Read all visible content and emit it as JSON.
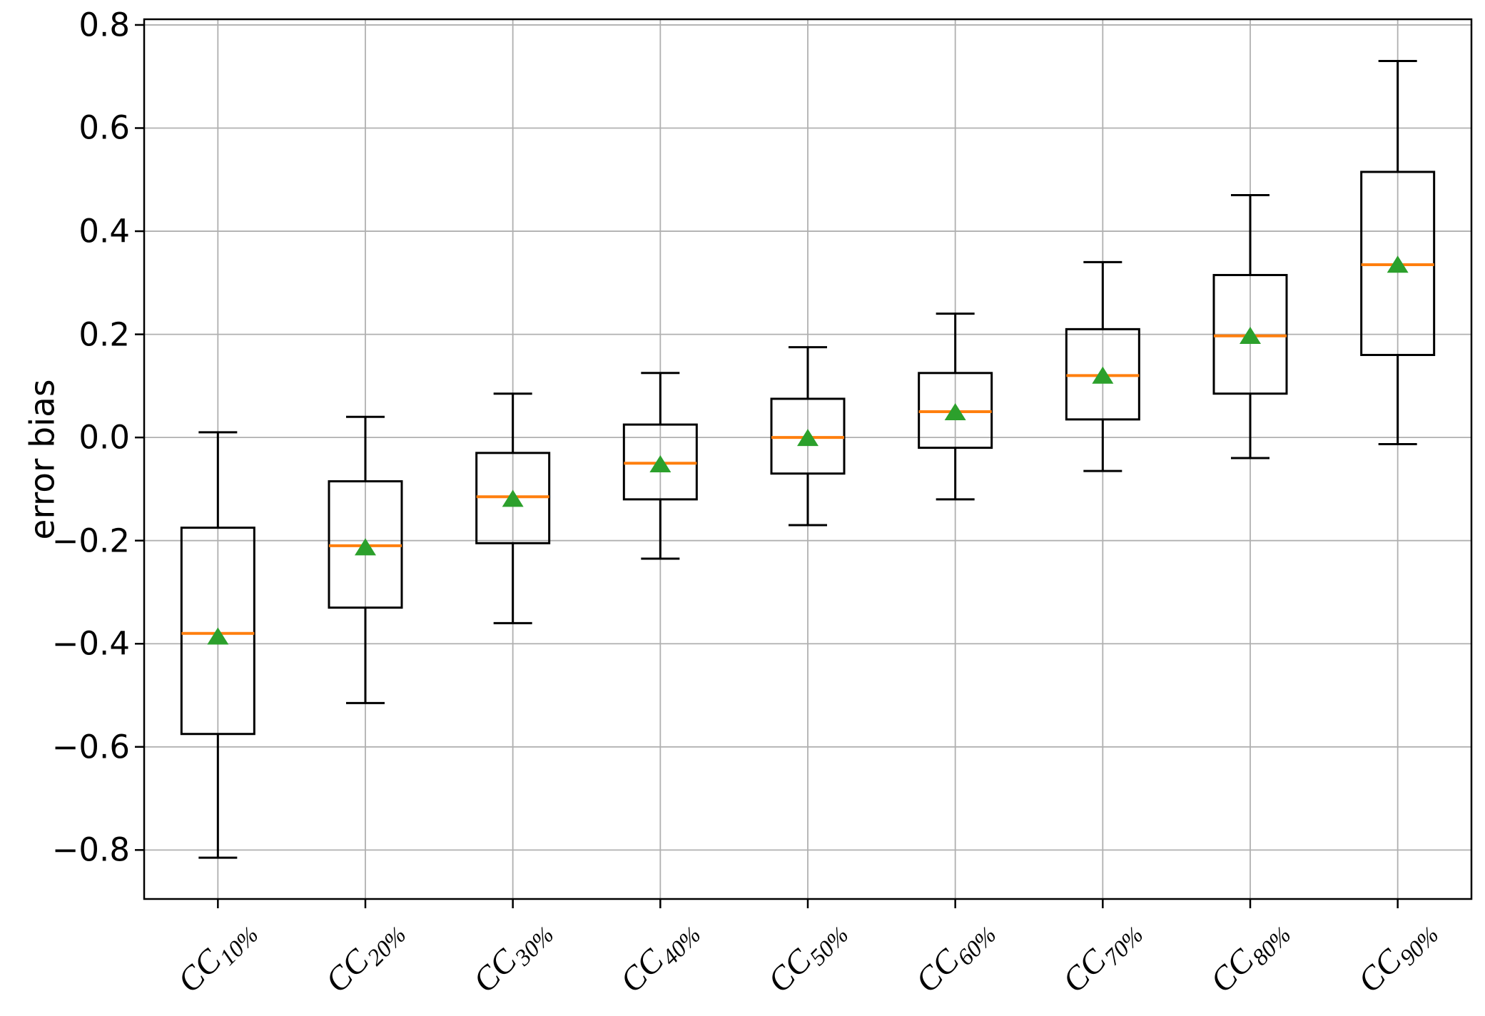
{
  "chart_data": {
    "type": "box",
    "title": "",
    "xlabel": "",
    "ylabel": "error bias",
    "grid": true,
    "legend": "none",
    "ylim": [
      -0.895,
      0.811
    ],
    "yticks": [
      {
        "value": 0.8,
        "label": "0.8"
      },
      {
        "value": 0.6,
        "label": "0.6"
      },
      {
        "value": 0.4,
        "label": "0.4"
      },
      {
        "value": 0.2,
        "label": "0.2"
      },
      {
        "value": 0.0,
        "label": "0.0"
      },
      {
        "value": -0.2,
        "label": "−0.2"
      },
      {
        "value": -0.4,
        "label": "−0.4"
      },
      {
        "value": -0.6,
        "label": "−0.6"
      },
      {
        "value": -0.8,
        "label": "−0.8"
      }
    ],
    "boxes": [
      {
        "label_base": "CC",
        "label_sub": "10%",
        "whislo": -0.815,
        "q1": -0.575,
        "med": -0.38,
        "q3": -0.175,
        "whishi": 0.01,
        "mean": -0.385
      },
      {
        "label_base": "CC",
        "label_sub": "20%",
        "whislo": -0.515,
        "q1": -0.33,
        "med": -0.21,
        "q3": -0.085,
        "whishi": 0.04,
        "mean": -0.212
      },
      {
        "label_base": "CC",
        "label_sub": "30%",
        "whislo": -0.36,
        "q1": -0.205,
        "med": -0.115,
        "q3": -0.03,
        "whishi": 0.085,
        "mean": -0.118
      },
      {
        "label_base": "CC",
        "label_sub": "40%",
        "whislo": -0.235,
        "q1": -0.12,
        "med": -0.05,
        "q3": 0.025,
        "whishi": 0.125,
        "mean": -0.051
      },
      {
        "label_base": "CC",
        "label_sub": "50%",
        "whislo": -0.17,
        "q1": -0.07,
        "med": 0.0,
        "q3": 0.075,
        "whishi": 0.175,
        "mean": 0.0
      },
      {
        "label_base": "CC",
        "label_sub": "60%",
        "whislo": -0.12,
        "q1": -0.02,
        "med": 0.05,
        "q3": 0.125,
        "whishi": 0.24,
        "mean": 0.05
      },
      {
        "label_base": "CC",
        "label_sub": "70%",
        "whislo": -0.065,
        "q1": 0.035,
        "med": 0.12,
        "q3": 0.21,
        "whishi": 0.34,
        "mean": 0.121
      },
      {
        "label_base": "CC",
        "label_sub": "80%",
        "whislo": -0.04,
        "q1": 0.085,
        "med": 0.197,
        "q3": 0.315,
        "whishi": 0.47,
        "mean": 0.198
      },
      {
        "label_base": "CC",
        "label_sub": "90%",
        "whislo": -0.013,
        "q1": 0.16,
        "med": 0.335,
        "q3": 0.515,
        "whishi": 0.73,
        "mean": 0.336
      }
    ],
    "colors": {
      "median": "#ff7f0e",
      "mean_marker": "#2ca02c",
      "box_line": "#000000",
      "grid": "#b0b0b0",
      "background": "#ffffff"
    }
  }
}
